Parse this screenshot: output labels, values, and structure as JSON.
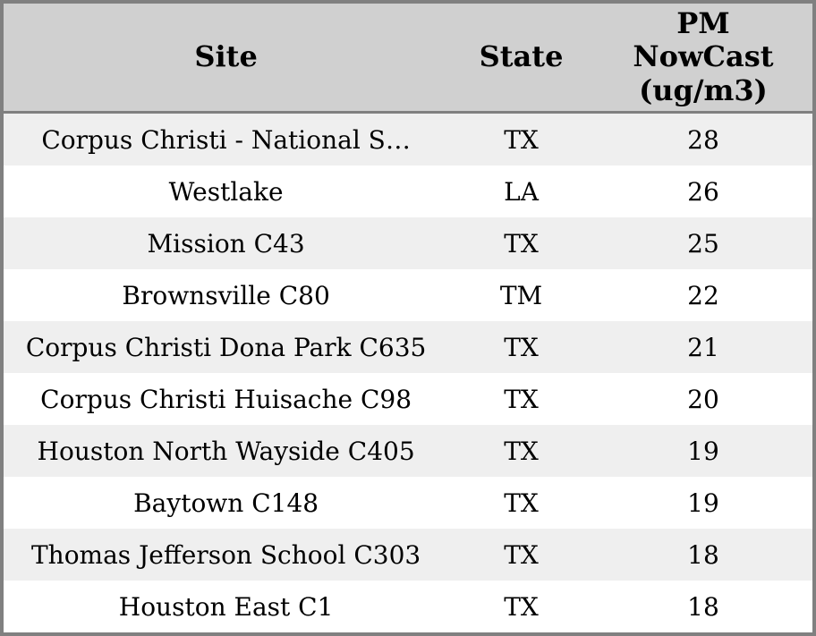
{
  "chart_data": {
    "type": "table",
    "columns": [
      "Site",
      "State",
      "PM NowCast (ug/m3)"
    ],
    "rows": [
      [
        "Corpus Christi - National S…",
        "TX",
        28
      ],
      [
        "Westlake",
        "LA",
        26
      ],
      [
        "Mission C43",
        "TX",
        25
      ],
      [
        "Brownsville C80",
        "TM",
        22
      ],
      [
        "Corpus Christi Dona Park C635",
        "TX",
        21
      ],
      [
        "Corpus Christi Huisache C98",
        "TX",
        20
      ],
      [
        "Houston North Wayside C405",
        "TX",
        19
      ],
      [
        "Baytown C148",
        "TX",
        19
      ],
      [
        "Thomas Jefferson School C303",
        "TX",
        18
      ],
      [
        "Houston East C1",
        "TX",
        18
      ]
    ]
  },
  "header": {
    "site_label": "Site",
    "state_label": "State",
    "pm_label_multiline": "PM\nNowCast\n(ug/m3)"
  },
  "colors": {
    "header_bg": "#d0d0d0",
    "row_alt_bg": "#efefef",
    "row_bg": "#ffffff",
    "border": "#808080",
    "text": "#000000"
  }
}
